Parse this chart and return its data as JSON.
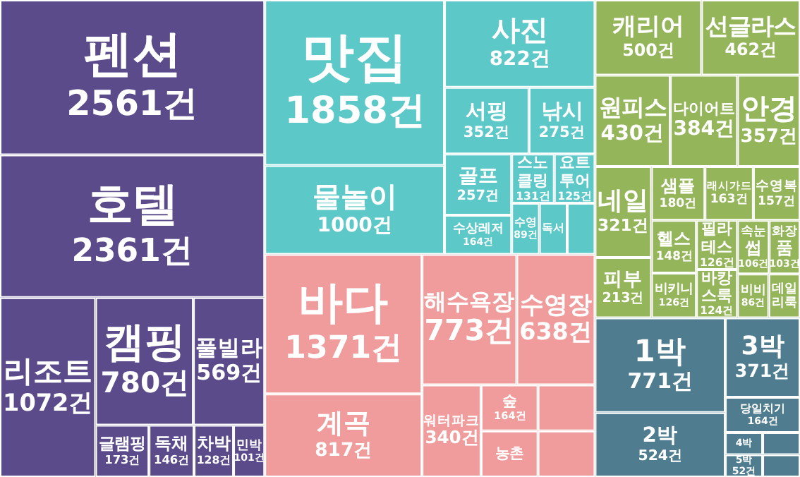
{
  "chart_data": {
    "type": "other",
    "categories": [
      "펜션",
      "호텔",
      "리조트",
      "캠핑",
      "풀빌라",
      "글램핑",
      "독채",
      "차박",
      "민박",
      "맛집",
      "물놀이",
      "사진",
      "서핑",
      "낚시",
      "골프",
      "수상레저",
      "스노클링",
      "요트투어",
      "수영",
      "독서",
      null,
      "바다",
      "계곡",
      "해수욕장",
      "수영장",
      "워터파크",
      "숲",
      "농촌",
      null,
      null,
      "캐리어",
      "선글라스",
      "원피스",
      "다이어트",
      "안경",
      "네일",
      "피부",
      "샘플",
      "래시가드",
      "수영복",
      "헬스",
      "비키니",
      "필라테스",
      "바캉스룩",
      "속눈썹",
      "화장품",
      "비비",
      "데일리룩",
      "1박",
      "2박",
      "3박",
      "당일치기",
      "4박",
      "5박",
      null,
      null
    ],
    "values": [
      2561,
      2361,
      1072,
      780,
      569,
      173,
      146,
      128,
      101,
      1858,
      1000,
      822,
      352,
      275,
      257,
      164,
      131,
      125,
      89,
      null,
      null,
      1371,
      817,
      773,
      638,
      340,
      164,
      null,
      null,
      null,
      500,
      462,
      430,
      384,
      357,
      321,
      213,
      180,
      163,
      157,
      148,
      126,
      126,
      124,
      106,
      103,
      86,
      null,
      771,
      524,
      371,
      164,
      null,
      52,
      null,
      null
    ],
    "value_labels": [
      "2561건",
      "2361건",
      "1072건",
      "780건",
      "569건",
      "173건",
      "146건",
      "128건",
      "101건",
      "1858건",
      "1000건",
      "822건",
      "352건",
      "275건",
      "257건",
      "164건",
      "131건",
      "125건",
      "89건",
      null,
      null,
      "1371건",
      "817건",
      "773건",
      "638건",
      "340건",
      "164건",
      null,
      null,
      null,
      "500건",
      "462건",
      "430건",
      "384건",
      "357건",
      "321건",
      "213건",
      "180건",
      "163건",
      "157건",
      "148건",
      "126건",
      "126건",
      "124건",
      "106건",
      "103건",
      "86건",
      null,
      "771건",
      "524건",
      "371건",
      "164건",
      null,
      "52건",
      null,
      null
    ],
    "colors": [
      "#5c4b8b",
      "#5c4b8b",
      "#5c4b8b",
      "#5c4b8b",
      "#5c4b8b",
      "#5c4b8b",
      "#5c4b8b",
      "#5c4b8b",
      "#5c4b8b",
      "#5cc8c8",
      "#5cc8c8",
      "#5cc8c8",
      "#5cc8c8",
      "#5cc8c8",
      "#5cc8c8",
      "#5cc8c8",
      "#5cc8c8",
      "#5cc8c8",
      "#5cc8c8",
      "#5cc8c8",
      "#5cc8c8",
      "#f09c9c",
      "#f09c9c",
      "#f09c9c",
      "#f09c9c",
      "#f09c9c",
      "#f09c9c",
      "#f09c9c",
      "#f09c9c",
      "#f09c9c",
      "#94b55a",
      "#94b55a",
      "#94b55a",
      "#94b55a",
      "#94b55a",
      "#94b55a",
      "#94b55a",
      "#94b55a",
      "#94b55a",
      "#94b55a",
      "#94b55a",
      "#94b55a",
      "#94b55a",
      "#94b55a",
      "#94b55a",
      "#94b55a",
      "#94b55a",
      "#94b55a",
      "#4f7d8f",
      "#4f7d8f",
      "#4f7d8f",
      "#4f7d8f",
      "#4f7d8f",
      "#4f7d8f",
      "#4f7d8f",
      "#4f7d8f"
    ],
    "data_labels": false
  }
}
